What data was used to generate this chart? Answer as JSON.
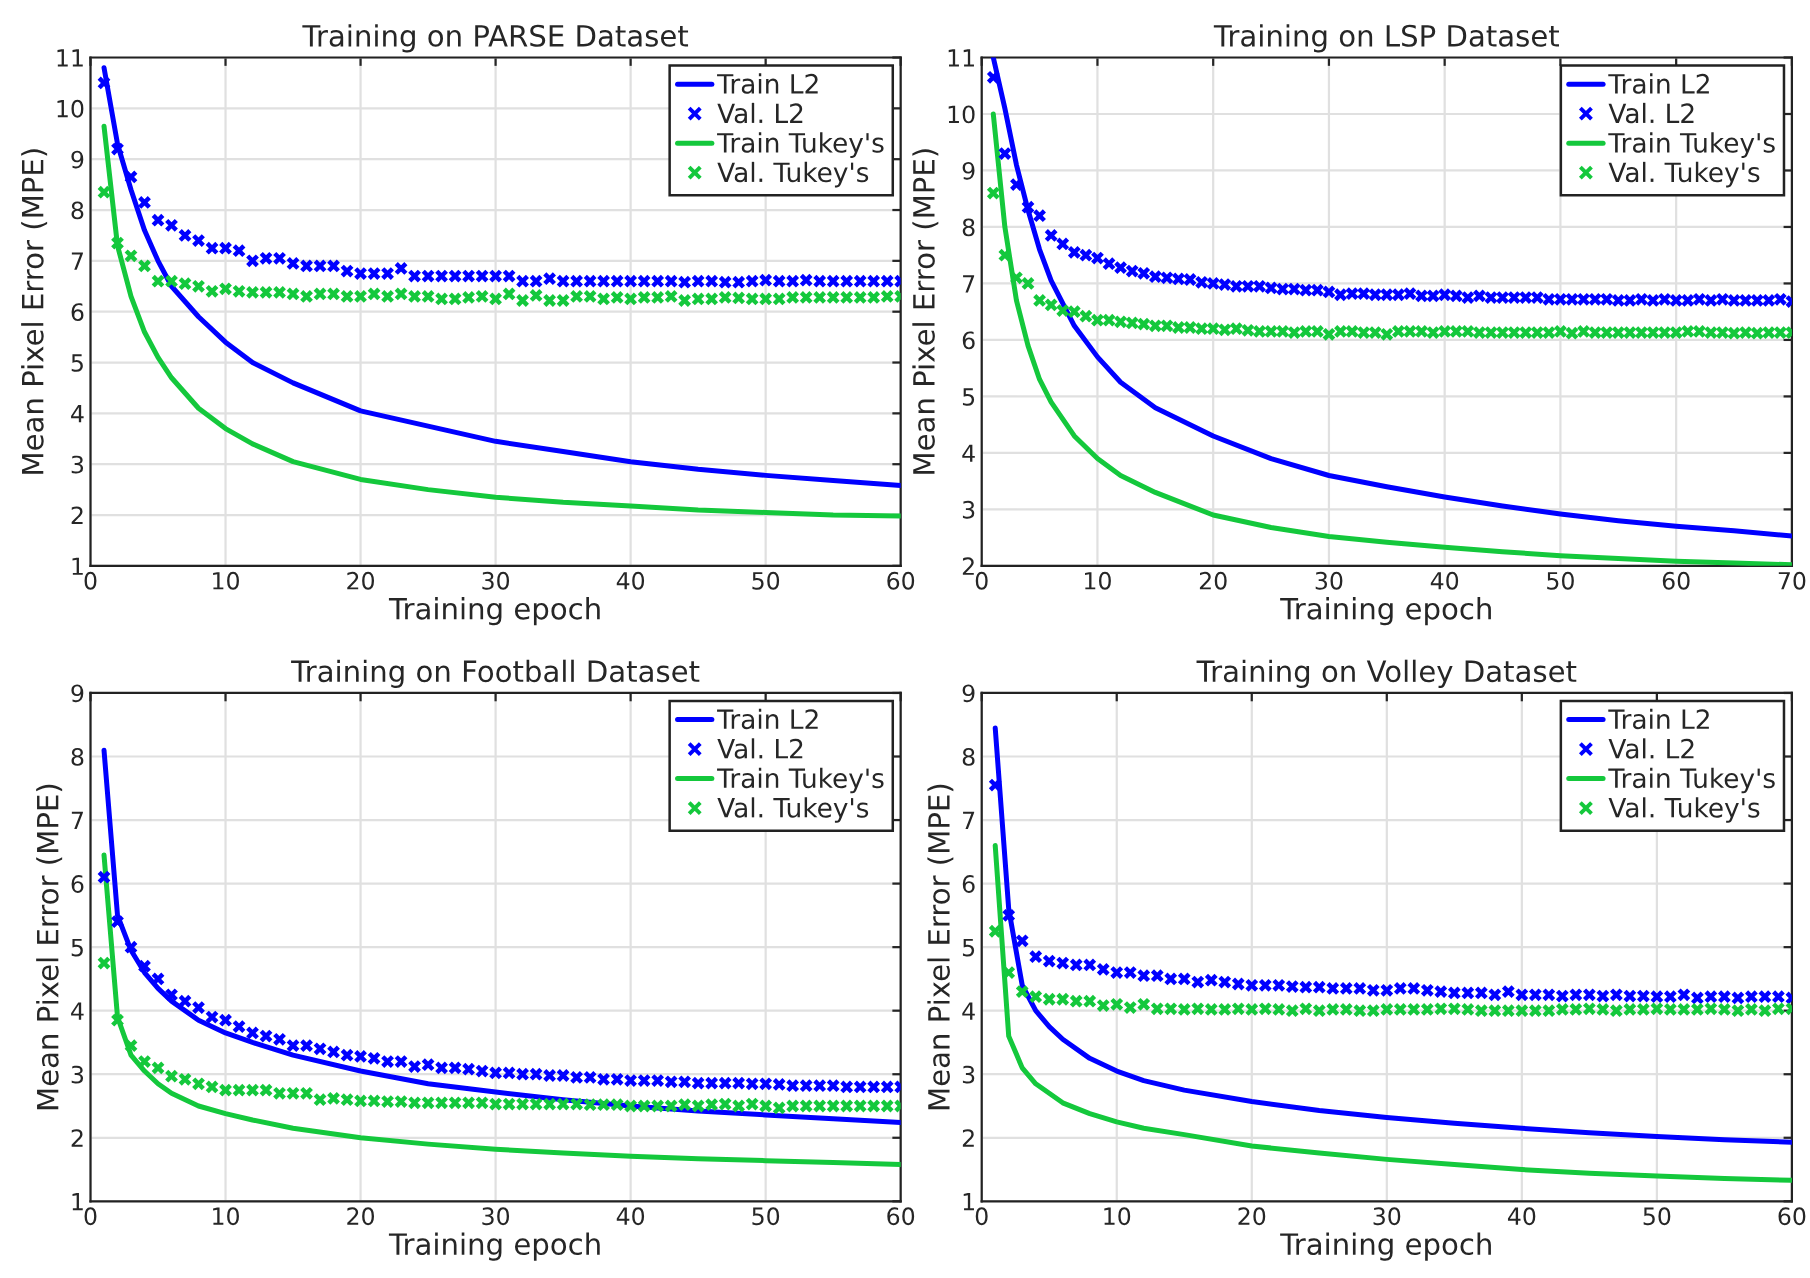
{
  "chart_data": [
    {
      "type": "line",
      "marker": "cross",
      "title": "Training on PARSE Dataset",
      "xlabel": "Training epoch",
      "ylabel": "Mean Pixel Error (MPE)",
      "xlim": [
        0,
        60
      ],
      "ylim": [
        1,
        11
      ],
      "xticks": [
        0,
        10,
        20,
        30,
        40,
        50,
        60
      ],
      "yticks": [
        1,
        2,
        3,
        4,
        5,
        6,
        7,
        8,
        9,
        10,
        11
      ],
      "grid": true,
      "legend": "top right",
      "x": [
        1,
        2,
        3,
        4,
        5,
        6,
        7,
        8,
        9,
        10,
        11,
        12,
        13,
        14,
        15,
        16,
        17,
        18,
        19,
        20,
        21,
        22,
        23,
        24,
        25,
        26,
        27,
        28,
        29,
        30,
        31,
        32,
        33,
        34,
        35,
        36,
        37,
        38,
        39,
        40,
        41,
        42,
        43,
        44,
        45,
        46,
        47,
        48,
        49,
        50,
        51,
        52,
        53,
        54,
        55,
        56,
        57,
        58,
        59,
        60
      ],
      "series": [
        {
          "name": "Train L2",
          "color": "#0000ff",
          "line_style": "solid",
          "marker": "none",
          "x": [
            1,
            2,
            3,
            4,
            5,
            6,
            8,
            10,
            12,
            15,
            20,
            25,
            30,
            35,
            40,
            45,
            50,
            55,
            60
          ],
          "values": [
            10.8,
            9.3,
            8.4,
            7.6,
            7.0,
            6.5,
            5.9,
            5.4,
            5.0,
            4.6,
            4.05,
            3.75,
            3.45,
            3.25,
            3.05,
            2.9,
            2.78,
            2.68,
            2.58
          ]
        },
        {
          "name": "Val. L2",
          "type": "scatter",
          "color": "#0000ff",
          "values": [
            10.5,
            9.2,
            8.65,
            8.15,
            7.8,
            7.7,
            7.5,
            7.4,
            7.25,
            7.25,
            7.2,
            7.0,
            7.05,
            7.05,
            6.95,
            6.9,
            6.9,
            6.9,
            6.8,
            6.75,
            6.75,
            6.75,
            6.85,
            6.7,
            6.7,
            6.7,
            6.7,
            6.7,
            6.7,
            6.7,
            6.7,
            6.6,
            6.6,
            6.65,
            6.6,
            6.6,
            6.6,
            6.6,
            6.6,
            6.6,
            6.6,
            6.6,
            6.6,
            6.58,
            6.6,
            6.6,
            6.58,
            6.58,
            6.6,
            6.62,
            6.6,
            6.6,
            6.62,
            6.6,
            6.6,
            6.6,
            6.6,
            6.6,
            6.6,
            6.6
          ]
        },
        {
          "name": "Train Tukey's",
          "color": "#14c83c",
          "line_style": "solid",
          "marker": "none",
          "x": [
            1,
            2,
            3,
            4,
            5,
            6,
            8,
            10,
            12,
            15,
            20,
            25,
            30,
            35,
            40,
            45,
            50,
            55,
            60
          ],
          "values": [
            9.65,
            7.3,
            6.3,
            5.6,
            5.1,
            4.7,
            4.1,
            3.7,
            3.4,
            3.05,
            2.7,
            2.5,
            2.35,
            2.25,
            2.18,
            2.1,
            2.05,
            2.0,
            1.98
          ]
        },
        {
          "name": "Val. Tukey's",
          "type": "scatter",
          "color": "#14c83c",
          "values": [
            8.35,
            7.35,
            7.1,
            6.9,
            6.6,
            6.6,
            6.55,
            6.5,
            6.4,
            6.45,
            6.4,
            6.38,
            6.38,
            6.38,
            6.35,
            6.3,
            6.35,
            6.35,
            6.3,
            6.3,
            6.35,
            6.3,
            6.35,
            6.3,
            6.3,
            6.25,
            6.25,
            6.28,
            6.3,
            6.25,
            6.35,
            6.22,
            6.32,
            6.22,
            6.22,
            6.3,
            6.3,
            6.25,
            6.28,
            6.25,
            6.28,
            6.28,
            6.3,
            6.22,
            6.25,
            6.25,
            6.28,
            6.27,
            6.25,
            6.25,
            6.25,
            6.28,
            6.28,
            6.28,
            6.28,
            6.28,
            6.28,
            6.28,
            6.3,
            6.3
          ]
        }
      ]
    },
    {
      "type": "line",
      "marker": "cross",
      "title": "Training on LSP Dataset",
      "xlabel": "Training epoch",
      "ylabel": "Mean Pixel Error (MPE)",
      "xlim": [
        0,
        70
      ],
      "ylim": [
        2,
        11
      ],
      "xticks": [
        0,
        10,
        20,
        30,
        40,
        50,
        60,
        70
      ],
      "yticks": [
        2,
        3,
        4,
        5,
        6,
        7,
        8,
        9,
        10,
        11
      ],
      "grid": true,
      "legend": "top right",
      "x": [
        1,
        2,
        3,
        4,
        5,
        6,
        7,
        8,
        9,
        10,
        11,
        12,
        13,
        14,
        15,
        16,
        17,
        18,
        19,
        20,
        21,
        22,
        23,
        24,
        25,
        26,
        27,
        28,
        29,
        30,
        31,
        32,
        33,
        34,
        35,
        36,
        37,
        38,
        39,
        40,
        41,
        42,
        43,
        44,
        45,
        46,
        47,
        48,
        49,
        50,
        51,
        52,
        53,
        54,
        55,
        56,
        57,
        58,
        59,
        60,
        61,
        62,
        63,
        64,
        65,
        66,
        67,
        68,
        69,
        70
      ],
      "series": [
        {
          "name": "Train L2",
          "color": "#0000ff",
          "line_style": "solid",
          "marker": "none",
          "x": [
            1,
            2,
            3,
            4,
            5,
            6,
            8,
            10,
            12,
            15,
            20,
            25,
            30,
            35,
            40,
            45,
            50,
            55,
            60,
            65,
            70
          ],
          "values": [
            11.0,
            10.1,
            9.1,
            8.3,
            7.6,
            7.05,
            6.25,
            5.7,
            5.25,
            4.8,
            4.3,
            3.9,
            3.6,
            3.4,
            3.22,
            3.06,
            2.92,
            2.8,
            2.7,
            2.62,
            2.53
          ]
        },
        {
          "name": "Val. L2",
          "type": "scatter",
          "color": "#0000ff",
          "values": [
            10.65,
            9.3,
            8.75,
            8.35,
            8.2,
            7.85,
            7.7,
            7.55,
            7.5,
            7.45,
            7.35,
            7.28,
            7.22,
            7.18,
            7.12,
            7.1,
            7.08,
            7.07,
            7.02,
            7.0,
            6.98,
            6.95,
            6.95,
            6.95,
            6.92,
            6.9,
            6.9,
            6.88,
            6.88,
            6.85,
            6.8,
            6.82,
            6.82,
            6.8,
            6.8,
            6.8,
            6.82,
            6.78,
            6.78,
            6.8,
            6.78,
            6.75,
            6.78,
            6.75,
            6.75,
            6.75,
            6.75,
            6.75,
            6.72,
            6.72,
            6.72,
            6.72,
            6.72,
            6.72,
            6.7,
            6.7,
            6.72,
            6.7,
            6.72,
            6.7,
            6.7,
            6.72,
            6.7,
            6.72,
            6.7,
            6.7,
            6.7,
            6.7,
            6.72,
            6.68
          ]
        },
        {
          "name": "Train Tukey's",
          "color": "#14c83c",
          "line_style": "solid",
          "marker": "none",
          "x": [
            1,
            2,
            3,
            4,
            5,
            6,
            8,
            10,
            12,
            15,
            20,
            25,
            30,
            35,
            40,
            45,
            50,
            55,
            60,
            65,
            70
          ],
          "values": [
            10.0,
            8.0,
            6.7,
            5.9,
            5.3,
            4.9,
            4.3,
            3.9,
            3.6,
            3.3,
            2.9,
            2.68,
            2.52,
            2.42,
            2.33,
            2.25,
            2.18,
            2.13,
            2.08,
            2.05,
            2.02
          ]
        },
        {
          "name": "Val. Tukey's",
          "type": "scatter",
          "color": "#14c83c",
          "values": [
            8.6,
            7.5,
            7.1,
            7.0,
            6.7,
            6.62,
            6.52,
            6.5,
            6.42,
            6.35,
            6.35,
            6.32,
            6.3,
            6.28,
            6.25,
            6.25,
            6.22,
            6.22,
            6.2,
            6.2,
            6.18,
            6.2,
            6.17,
            6.15,
            6.15,
            6.15,
            6.13,
            6.15,
            6.15,
            6.1,
            6.15,
            6.15,
            6.13,
            6.13,
            6.1,
            6.15,
            6.15,
            6.15,
            6.13,
            6.15,
            6.15,
            6.15,
            6.13,
            6.13,
            6.13,
            6.13,
            6.13,
            6.13,
            6.13,
            6.15,
            6.12,
            6.15,
            6.13,
            6.13,
            6.13,
            6.13,
            6.13,
            6.13,
            6.13,
            6.13,
            6.15,
            6.15,
            6.13,
            6.13,
            6.12,
            6.13,
            6.12,
            6.13,
            6.13,
            6.13
          ]
        }
      ]
    },
    {
      "type": "line",
      "marker": "cross",
      "title": "Training on Football Dataset",
      "xlabel": "Training epoch",
      "ylabel": "Mean Pixel Error (MPE)",
      "xlim": [
        0,
        60
      ],
      "ylim": [
        1,
        9
      ],
      "xticks": [
        0,
        10,
        20,
        30,
        40,
        50,
        60
      ],
      "yticks": [
        1,
        2,
        3,
        4,
        5,
        6,
        7,
        8,
        9
      ],
      "grid": true,
      "legend": "top right",
      "x": [
        1,
        2,
        3,
        4,
        5,
        6,
        7,
        8,
        9,
        10,
        11,
        12,
        13,
        14,
        15,
        16,
        17,
        18,
        19,
        20,
        21,
        22,
        23,
        24,
        25,
        26,
        27,
        28,
        29,
        30,
        31,
        32,
        33,
        34,
        35,
        36,
        37,
        38,
        39,
        40,
        41,
        42,
        43,
        44,
        45,
        46,
        47,
        48,
        49,
        50,
        51,
        52,
        53,
        54,
        55,
        56,
        57,
        58,
        59,
        60
      ],
      "series": [
        {
          "name": "Train L2",
          "color": "#0000ff",
          "line_style": "solid",
          "marker": "none",
          "x": [
            1,
            2,
            3,
            4,
            5,
            6,
            8,
            10,
            12,
            15,
            20,
            25,
            30,
            35,
            40,
            45,
            50,
            55,
            60
          ],
          "values": [
            8.1,
            5.5,
            4.95,
            4.6,
            4.35,
            4.15,
            3.85,
            3.65,
            3.5,
            3.3,
            3.05,
            2.85,
            2.72,
            2.6,
            2.5,
            2.42,
            2.36,
            2.3,
            2.24
          ]
        },
        {
          "name": "Val. L2",
          "type": "scatter",
          "color": "#0000ff",
          "values": [
            6.1,
            5.4,
            5.0,
            4.7,
            4.5,
            4.25,
            4.15,
            4.05,
            3.9,
            3.85,
            3.75,
            3.65,
            3.6,
            3.55,
            3.45,
            3.45,
            3.4,
            3.35,
            3.3,
            3.28,
            3.25,
            3.2,
            3.2,
            3.12,
            3.15,
            3.1,
            3.1,
            3.08,
            3.05,
            3.02,
            3.02,
            3.0,
            3.0,
            2.98,
            2.98,
            2.95,
            2.95,
            2.92,
            2.92,
            2.9,
            2.9,
            2.9,
            2.88,
            2.88,
            2.86,
            2.86,
            2.86,
            2.86,
            2.85,
            2.85,
            2.84,
            2.82,
            2.82,
            2.82,
            2.82,
            2.8,
            2.8,
            2.8,
            2.8,
            2.8
          ]
        },
        {
          "name": "Train Tukey's",
          "color": "#14c83c",
          "line_style": "solid",
          "marker": "none",
          "x": [
            1,
            2,
            3,
            4,
            5,
            6,
            8,
            10,
            12,
            15,
            20,
            25,
            30,
            35,
            40,
            45,
            50,
            55,
            60
          ],
          "values": [
            6.45,
            3.9,
            3.3,
            3.05,
            2.85,
            2.7,
            2.5,
            2.38,
            2.28,
            2.15,
            2.0,
            1.9,
            1.82,
            1.76,
            1.71,
            1.67,
            1.64,
            1.61,
            1.58
          ]
        },
        {
          "name": "Val. Tukey's",
          "type": "scatter",
          "color": "#14c83c",
          "values": [
            4.75,
            3.85,
            3.45,
            3.2,
            3.1,
            2.97,
            2.92,
            2.85,
            2.8,
            2.75,
            2.75,
            2.75,
            2.75,
            2.7,
            2.7,
            2.7,
            2.6,
            2.62,
            2.6,
            2.58,
            2.58,
            2.57,
            2.57,
            2.55,
            2.55,
            2.55,
            2.55,
            2.55,
            2.55,
            2.53,
            2.53,
            2.53,
            2.53,
            2.53,
            2.53,
            2.53,
            2.52,
            2.52,
            2.52,
            2.5,
            2.5,
            2.5,
            2.5,
            2.52,
            2.5,
            2.52,
            2.53,
            2.5,
            2.53,
            2.5,
            2.47,
            2.5,
            2.5,
            2.5,
            2.5,
            2.5,
            2.5,
            2.5,
            2.5,
            2.5
          ]
        }
      ]
    },
    {
      "type": "line",
      "marker": "cross",
      "title": "Training on Volley Dataset",
      "xlabel": "Training epoch",
      "ylabel": "Mean Pixel Error (MPE)",
      "xlim": [
        0,
        60
      ],
      "ylim": [
        1,
        9
      ],
      "xticks": [
        0,
        10,
        20,
        30,
        40,
        50,
        60
      ],
      "yticks": [
        1,
        2,
        3,
        4,
        5,
        6,
        7,
        8,
        9
      ],
      "grid": true,
      "legend": "top right",
      "x": [
        1,
        2,
        3,
        4,
        5,
        6,
        7,
        8,
        9,
        10,
        11,
        12,
        13,
        14,
        15,
        16,
        17,
        18,
        19,
        20,
        21,
        22,
        23,
        24,
        25,
        26,
        27,
        28,
        29,
        30,
        31,
        32,
        33,
        34,
        35,
        36,
        37,
        38,
        39,
        40,
        41,
        42,
        43,
        44,
        45,
        46,
        47,
        48,
        49,
        50,
        51,
        52,
        53,
        54,
        55,
        56,
        57,
        58,
        59,
        60
      ],
      "series": [
        {
          "name": "Train L2",
          "color": "#0000ff",
          "line_style": "solid",
          "marker": "none",
          "x": [
            1,
            2,
            3,
            4,
            5,
            6,
            8,
            10,
            12,
            15,
            20,
            25,
            30,
            35,
            40,
            45,
            50,
            55,
            60
          ],
          "values": [
            8.45,
            5.6,
            4.4,
            4.0,
            3.75,
            3.55,
            3.25,
            3.05,
            2.9,
            2.75,
            2.57,
            2.43,
            2.32,
            2.23,
            2.15,
            2.08,
            2.02,
            1.97,
            1.93
          ]
        },
        {
          "name": "Val. L2",
          "type": "scatter",
          "color": "#0000ff",
          "values": [
            7.55,
            5.5,
            5.1,
            4.85,
            4.78,
            4.75,
            4.72,
            4.72,
            4.65,
            4.6,
            4.6,
            4.55,
            4.55,
            4.5,
            4.5,
            4.45,
            4.48,
            4.45,
            4.42,
            4.4,
            4.4,
            4.4,
            4.38,
            4.37,
            4.37,
            4.35,
            4.35,
            4.35,
            4.32,
            4.32,
            4.35,
            4.35,
            4.32,
            4.3,
            4.28,
            4.28,
            4.28,
            4.25,
            4.3,
            4.25,
            4.25,
            4.25,
            4.23,
            4.25,
            4.25,
            4.23,
            4.25,
            4.23,
            4.23,
            4.22,
            4.22,
            4.25,
            4.2,
            4.22,
            4.22,
            4.2,
            4.22,
            4.22,
            4.22,
            4.2
          ]
        },
        {
          "name": "Train Tukey's",
          "color": "#14c83c",
          "line_style": "solid",
          "marker": "none",
          "x": [
            1,
            2,
            3,
            4,
            5,
            6,
            8,
            10,
            12,
            15,
            20,
            25,
            30,
            35,
            40,
            45,
            50,
            55,
            60
          ],
          "values": [
            6.6,
            3.6,
            3.1,
            2.85,
            2.7,
            2.55,
            2.38,
            2.25,
            2.15,
            2.05,
            1.87,
            1.76,
            1.66,
            1.58,
            1.5,
            1.44,
            1.4,
            1.36,
            1.33
          ]
        },
        {
          "name": "Val. Tukey's",
          "type": "scatter",
          "color": "#14c83c",
          "values": [
            5.25,
            4.6,
            4.3,
            4.22,
            4.18,
            4.18,
            4.15,
            4.15,
            4.08,
            4.1,
            4.05,
            4.1,
            4.03,
            4.03,
            4.02,
            4.03,
            4.02,
            4.02,
            4.03,
            4.02,
            4.03,
            4.02,
            4.0,
            4.03,
            4.0,
            4.02,
            4.02,
            4.0,
            4.0,
            4.02,
            4.02,
            4.02,
            4.02,
            4.03,
            4.03,
            4.02,
            4.0,
            4.0,
            4.0,
            4.0,
            4.0,
            4.0,
            4.02,
            4.02,
            4.03,
            4.02,
            4.0,
            4.02,
            4.02,
            4.03,
            4.02,
            4.02,
            4.02,
            4.03,
            4.02,
            4.0,
            4.02,
            4.0,
            4.03,
            4.03
          ]
        }
      ]
    }
  ]
}
